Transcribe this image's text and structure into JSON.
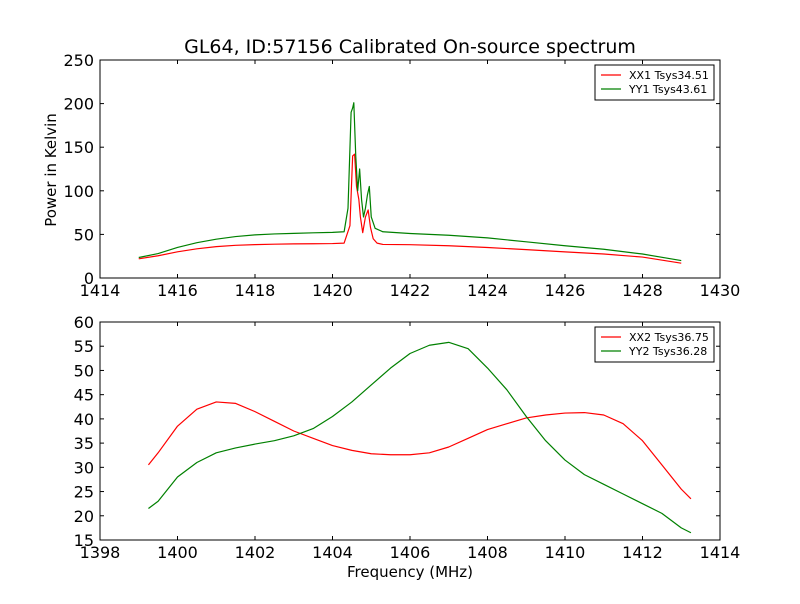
{
  "chart_data": [
    {
      "type": "line",
      "title": "GL64, ID:57156 Calibrated On-source spectrum",
      "xlabel": "",
      "ylabel": "Power in Kelvin",
      "xlim": [
        1414,
        1430
      ],
      "ylim": [
        0,
        250
      ],
      "xticks": [
        "1414",
        "1416",
        "1418",
        "1420",
        "1422",
        "1424",
        "1426",
        "1428",
        "1430"
      ],
      "yticks": [
        "0",
        "50",
        "100",
        "150",
        "200",
        "250"
      ],
      "legend_position": "top-right",
      "series": [
        {
          "name": "XX1 Tsys34.51",
          "color": "#ff0000",
          "points": [
            [
              1415.0,
              22
            ],
            [
              1415.5,
              25.5
            ],
            [
              1416.0,
              30
            ],
            [
              1416.5,
              33.5
            ],
            [
              1417.0,
              36
            ],
            [
              1417.5,
              37.5
            ],
            [
              1418.0,
              38.3
            ],
            [
              1418.5,
              38.8
            ],
            [
              1419.0,
              39.1
            ],
            [
              1419.5,
              39.3
            ],
            [
              1420.0,
              39.5
            ],
            [
              1420.3,
              40
            ],
            [
              1420.45,
              60
            ],
            [
              1420.52,
              140
            ],
            [
              1420.57,
              142
            ],
            [
              1420.62,
              105
            ],
            [
              1420.68,
              90
            ],
            [
              1420.72,
              70
            ],
            [
              1420.78,
              52
            ],
            [
              1420.85,
              70
            ],
            [
              1420.92,
              78
            ],
            [
              1420.98,
              58
            ],
            [
              1421.05,
              45
            ],
            [
              1421.15,
              40
            ],
            [
              1421.3,
              38.5
            ],
            [
              1422.0,
              38.2
            ],
            [
              1423.0,
              37
            ],
            [
              1424.0,
              35
            ],
            [
              1425.0,
              32.5
            ],
            [
              1426.0,
              30
            ],
            [
              1427.0,
              27.5
            ],
            [
              1428.0,
              24
            ],
            [
              1429.0,
              17
            ]
          ]
        },
        {
          "name": "YY1 Tsys43.61",
          "color": "#008000",
          "points": [
            [
              1415.0,
              23.5
            ],
            [
              1415.5,
              28
            ],
            [
              1416.0,
              35
            ],
            [
              1416.5,
              40.5
            ],
            [
              1417.0,
              44.5
            ],
            [
              1417.5,
              47.5
            ],
            [
              1418.0,
              49.5
            ],
            [
              1418.5,
              50.5
            ],
            [
              1419.0,
              51.2
            ],
            [
              1419.5,
              51.8
            ],
            [
              1420.0,
              52.3
            ],
            [
              1420.3,
              53
            ],
            [
              1420.4,
              80
            ],
            [
              1420.48,
              190
            ],
            [
              1420.52,
              195
            ],
            [
              1420.55,
              201
            ],
            [
              1420.6,
              140
            ],
            [
              1420.65,
              100
            ],
            [
              1420.7,
              125
            ],
            [
              1420.75,
              90
            ],
            [
              1420.8,
              70
            ],
            [
              1420.85,
              80
            ],
            [
              1420.9,
              95
            ],
            [
              1420.95,
              105
            ],
            [
              1421.0,
              70
            ],
            [
              1421.1,
              57
            ],
            [
              1421.3,
              53
            ],
            [
              1422.0,
              51
            ],
            [
              1423.0,
              49
            ],
            [
              1424.0,
              46
            ],
            [
              1425.0,
              41.5
            ],
            [
              1426.0,
              37
            ],
            [
              1427.0,
              33
            ],
            [
              1428.0,
              27.5
            ],
            [
              1429.0,
              20
            ]
          ]
        }
      ]
    },
    {
      "type": "line",
      "title": "",
      "xlabel": "Frequency (MHz)",
      "ylabel": "",
      "xlim": [
        1398,
        1414
      ],
      "ylim": [
        15,
        60
      ],
      "xticks": [
        "1398",
        "1400",
        "1402",
        "1404",
        "1406",
        "1408",
        "1410",
        "1412",
        "1414"
      ],
      "yticks": [
        "15",
        "20",
        "25",
        "30",
        "35",
        "40",
        "45",
        "50",
        "55",
        "60"
      ],
      "legend_position": "top-right",
      "series": [
        {
          "name": "XX2 Tsys36.75",
          "color": "#ff0000",
          "points": [
            [
              1399.25,
              30.5
            ],
            [
              1399.5,
              33
            ],
            [
              1400.0,
              38.5
            ],
            [
              1400.5,
              42
            ],
            [
              1401.0,
              43.5
            ],
            [
              1401.5,
              43.2
            ],
            [
              1402.0,
              41.5
            ],
            [
              1402.5,
              39.5
            ],
            [
              1403.0,
              37.5
            ],
            [
              1403.5,
              36
            ],
            [
              1404.0,
              34.5
            ],
            [
              1404.5,
              33.5
            ],
            [
              1405.0,
              32.8
            ],
            [
              1405.5,
              32.6
            ],
            [
              1406.0,
              32.6
            ],
            [
              1406.5,
              33
            ],
            [
              1407.0,
              34.2
            ],
            [
              1407.5,
              36
            ],
            [
              1408.0,
              37.8
            ],
            [
              1408.5,
              39
            ],
            [
              1409.0,
              40.2
            ],
            [
              1409.5,
              40.8
            ],
            [
              1410.0,
              41.2
            ],
            [
              1410.5,
              41.3
            ],
            [
              1411.0,
              40.8
            ],
            [
              1411.5,
              39
            ],
            [
              1412.0,
              35.5
            ],
            [
              1412.5,
              30.5
            ],
            [
              1413.0,
              25.5
            ],
            [
              1413.25,
              23.5
            ]
          ]
        },
        {
          "name": "YY2 Tsys36.28",
          "color": "#008000",
          "points": [
            [
              1399.25,
              21.5
            ],
            [
              1399.5,
              23
            ],
            [
              1400.0,
              28
            ],
            [
              1400.5,
              31
            ],
            [
              1401.0,
              33
            ],
            [
              1401.5,
              34
            ],
            [
              1402.0,
              34.8
            ],
            [
              1402.5,
              35.5
            ],
            [
              1403.0,
              36.5
            ],
            [
              1403.5,
              38
            ],
            [
              1404.0,
              40.5
            ],
            [
              1404.5,
              43.5
            ],
            [
              1405.0,
              47
            ],
            [
              1405.5,
              50.5
            ],
            [
              1406.0,
              53.5
            ],
            [
              1406.5,
              55.2
            ],
            [
              1407.0,
              55.8
            ],
            [
              1407.5,
              54.5
            ],
            [
              1408.0,
              50.5
            ],
            [
              1408.5,
              46
            ],
            [
              1409.0,
              40.5
            ],
            [
              1409.5,
              35.5
            ],
            [
              1410.0,
              31.5
            ],
            [
              1410.5,
              28.5
            ],
            [
              1411.0,
              26.5
            ],
            [
              1411.5,
              24.5
            ],
            [
              1412.0,
              22.5
            ],
            [
              1412.5,
              20.5
            ],
            [
              1413.0,
              17.5
            ],
            [
              1413.25,
              16.5
            ]
          ]
        }
      ]
    }
  ]
}
